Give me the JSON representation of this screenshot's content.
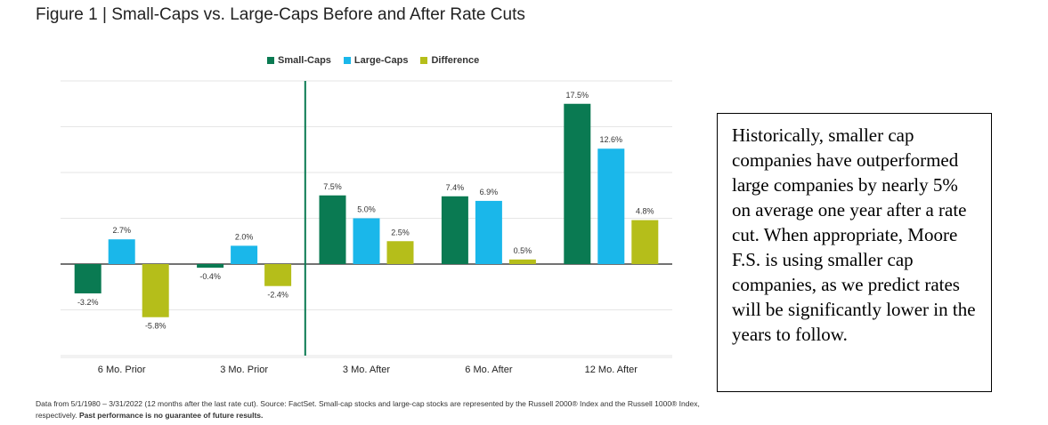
{
  "figure": {
    "title": "Figure 1 | Small-Caps vs. Large-Caps Before and After Rate Cuts",
    "footnote_main": "Data from 5/1/1980 – 3/31/2022 (12 months after the last rate cut). Source: FactSet. Small-cap stocks and large-cap stocks are represented by the Russell 2000® Index and the Russell 1000® Index, respectively.",
    "footnote_bold": "Past performance is no guarantee of future results."
  },
  "note": {
    "text": "Historically, smaller cap companies have outperformed large companies by nearly 5% on average one year after a rate cut. When appropriate, Moore F.S. is using smaller cap companies, as we predict rates will be significantly lower in the years to follow."
  },
  "chart_data": {
    "type": "bar",
    "categories": [
      "6 Mo. Prior",
      "3 Mo. Prior",
      "3 Mo. After",
      "6 Mo. After",
      "12 Mo. After"
    ],
    "series": [
      {
        "name": "Small-Caps",
        "color": "#0a7a52",
        "values": [
          -3.2,
          -0.4,
          7.5,
          7.4,
          17.5
        ],
        "labels": [
          "-3.2%",
          "-0.4%",
          "7.5%",
          "7.4%",
          "17.5%"
        ]
      },
      {
        "name": "Large-Caps",
        "color": "#1ab7ea",
        "values": [
          2.7,
          2.0,
          5.0,
          6.9,
          12.6
        ],
        "labels": [
          "2.7%",
          "2.0%",
          "5.0%",
          "6.9%",
          "12.6%"
        ]
      },
      {
        "name": "Difference",
        "color": "#b5be1a",
        "values": [
          -5.8,
          -2.4,
          2.5,
          0.5,
          4.8
        ],
        "labels": [
          "-5.8%",
          "-2.4%",
          "2.5%",
          "0.5%",
          "4.8%"
        ]
      }
    ],
    "ylim": [
      -10,
      20
    ],
    "grid": true,
    "legend_position": "top-center",
    "divider_after_category": 1
  }
}
